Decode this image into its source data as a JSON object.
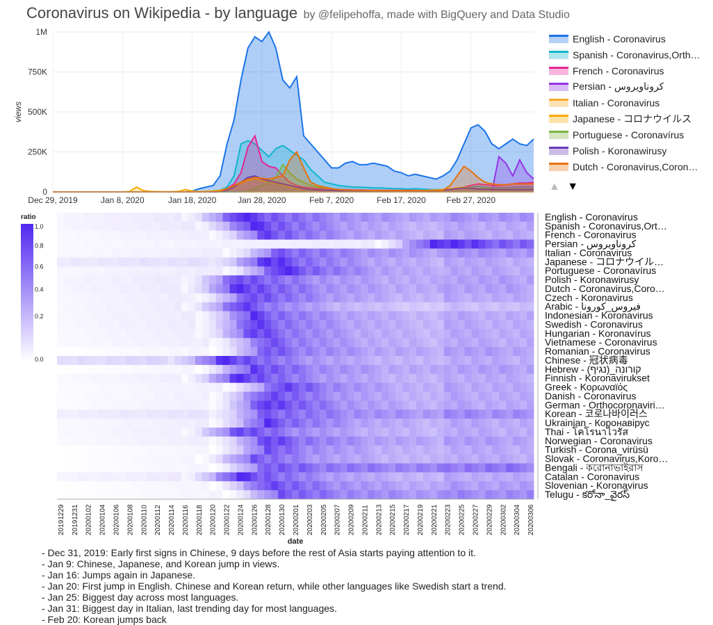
{
  "header": {
    "title": "Coronavirus on Wikipedia - by language",
    "subtitle": "by @felipehoffa, made with BigQuery and Data Studio"
  },
  "legend_nav": {
    "prev": "▲",
    "next": "▼"
  },
  "chart_data": [
    {
      "type": "area",
      "title": "",
      "xlabel": "",
      "ylabel": "views",
      "ylim": [
        0,
        1000000
      ],
      "y_ticks": [
        "0",
        "250K",
        "500K",
        "750K",
        "1M"
      ],
      "y_tick_values": [
        0,
        250000,
        500000,
        750000,
        1000000
      ],
      "x_ticks": [
        "Dec 29, 2019",
        "Jan 8, 2020",
        "Jan 18, 2020",
        "Jan 28, 2020",
        "Feb 7, 2020",
        "Feb 17, 2020",
        "Feb 27, 2020"
      ],
      "x_tick_index": [
        0,
        10,
        20,
        30,
        40,
        50,
        60
      ],
      "grid": true,
      "legend_position": "right",
      "series": [
        {
          "name": "English - Coronavirus",
          "color": "#1a73e8",
          "values": [
            0,
            0,
            0,
            0,
            0,
            0,
            0,
            0,
            0,
            0,
            0,
            0,
            0,
            0,
            0,
            0,
            0,
            0,
            0,
            0,
            5000,
            20000,
            30000,
            40000,
            100000,
            300000,
            450000,
            700000,
            900000,
            970000,
            940000,
            1000000,
            900000,
            700000,
            650000,
            720000,
            350000,
            300000,
            250000,
            200000,
            150000,
            150000,
            180000,
            190000,
            170000,
            170000,
            180000,
            170000,
            160000,
            130000,
            120000,
            100000,
            110000,
            100000,
            90000,
            80000,
            100000,
            130000,
            200000,
            300000,
            400000,
            420000,
            380000,
            300000,
            270000,
            300000,
            330000,
            300000,
            290000,
            330000
          ]
        },
        {
          "name": "Spanish - Coronavirus,Orthocoronavirinae",
          "color": "#12b5cb",
          "values": [
            0,
            0,
            0,
            0,
            0,
            0,
            0,
            0,
            0,
            0,
            0,
            0,
            0,
            0,
            0,
            0,
            0,
            0,
            0,
            0,
            0,
            0,
            2000,
            5000,
            10000,
            30000,
            100000,
            300000,
            320000,
            300000,
            260000,
            220000,
            270000,
            290000,
            260000,
            230000,
            200000,
            140000,
            100000,
            60000,
            50000,
            40000,
            35000,
            30000,
            30000,
            28000,
            25000,
            25000,
            22000,
            20000,
            20000,
            18000,
            20000,
            18000,
            15000,
            15000,
            15000,
            15000,
            20000,
            25000,
            30000,
            35000,
            30000,
            25000,
            25000,
            25000,
            28000,
            30000,
            30000,
            30000
          ]
        },
        {
          "name": "French - Coronavirus",
          "color": "#e52592",
          "values": [
            0,
            0,
            0,
            0,
            0,
            0,
            0,
            0,
            0,
            0,
            0,
            0,
            0,
            0,
            0,
            0,
            0,
            0,
            0,
            0,
            0,
            0,
            0,
            2000,
            5000,
            20000,
            50000,
            120000,
            280000,
            350000,
            190000,
            160000,
            150000,
            100000,
            60000,
            40000,
            30000,
            25000,
            20000,
            18000,
            15000,
            15000,
            14000,
            12000,
            12000,
            11000,
            10000,
            10000,
            10000,
            9000,
            9000,
            9000,
            9000,
            8000,
            9000,
            10000,
            12000,
            15000,
            20000,
            30000,
            40000,
            50000,
            45000,
            40000,
            40000,
            45000,
            50000,
            55000,
            55000,
            60000
          ]
        },
        {
          "name": "Persian - كروناويروس",
          "color": "#9334e6",
          "values": [
            0,
            0,
            0,
            0,
            0,
            0,
            0,
            0,
            0,
            0,
            0,
            0,
            0,
            0,
            0,
            0,
            0,
            0,
            0,
            0,
            0,
            0,
            0,
            0,
            0,
            0,
            0,
            0,
            0,
            0,
            0,
            0,
            0,
            0,
            0,
            0,
            0,
            0,
            0,
            0,
            0,
            0,
            0,
            0,
            0,
            0,
            0,
            0,
            0,
            0,
            0,
            0,
            0,
            0,
            0,
            0,
            0,
            0,
            0,
            0,
            0,
            0,
            0,
            0,
            220000,
            180000,
            100000,
            200000,
            120000,
            80000
          ]
        },
        {
          "name": "Italian - Coronavirus",
          "color": "#f9a825",
          "values": [
            0,
            0,
            0,
            0,
            0,
            0,
            0,
            0,
            0,
            0,
            0,
            0,
            0,
            0,
            0,
            0,
            0,
            0,
            0,
            0,
            0,
            0,
            0,
            0,
            0,
            0,
            0,
            0,
            0,
            0,
            0,
            0,
            0,
            0,
            0,
            0,
            0,
            0,
            0,
            0,
            0,
            0,
            0,
            0,
            0,
            0,
            0,
            0,
            0,
            0,
            0,
            0,
            0,
            0,
            0,
            0,
            0,
            0,
            0,
            0,
            0,
            0,
            0,
            0,
            0,
            0,
            0,
            0,
            0,
            0
          ]
        },
        {
          "name": "Japanese - コロナウイルス",
          "color": "#f9ab00",
          "values": [
            0,
            0,
            0,
            0,
            0,
            0,
            0,
            0,
            0,
            0,
            0,
            2000,
            30000,
            8000,
            3000,
            2000,
            1000,
            1000,
            3000,
            15000,
            5000,
            2000,
            3000,
            5000,
            10000,
            20000,
            30000,
            50000,
            70000,
            80000,
            70000,
            60000,
            55000,
            40000,
            30000,
            20000,
            15000,
            12000,
            10000,
            10000,
            8000,
            8000,
            8000,
            8000,
            8000,
            7000,
            7000,
            7000,
            6000,
            6000,
            6000,
            7000,
            7000,
            8000,
            10000,
            12000,
            15000,
            20000,
            25000,
            30000,
            25000,
            20000,
            20000,
            20000,
            18000,
            18000,
            18000,
            18000,
            18000,
            18000
          ]
        },
        {
          "name": "Portuguese - Coronavírus",
          "color": "#7cb342",
          "values": [
            0,
            0,
            0,
            0,
            0,
            0,
            0,
            0,
            0,
            0,
            0,
            0,
            0,
            0,
            0,
            0,
            0,
            0,
            0,
            0,
            0,
            0,
            0,
            0,
            0,
            0,
            0,
            1000,
            5000,
            20000,
            40000,
            60000,
            90000,
            170000,
            120000,
            80000,
            60000,
            40000,
            30000,
            25000,
            20000,
            15000,
            12000,
            10000,
            10000,
            9000,
            8000,
            8000,
            8000,
            7000,
            7000,
            7000,
            7000,
            7000,
            8000,
            9000,
            10000,
            15000,
            20000,
            25000,
            25000,
            20000,
            20000,
            20000,
            18000,
            18000,
            18000,
            18000,
            18000,
            18000
          ]
        },
        {
          "name": "Polish - Koronawirusy",
          "color": "#673ab7",
          "values": [
            0,
            0,
            0,
            0,
            0,
            0,
            0,
            0,
            0,
            0,
            0,
            0,
            0,
            0,
            0,
            0,
            0,
            0,
            0,
            0,
            0,
            0,
            0,
            0,
            2000,
            10000,
            30000,
            60000,
            90000,
            100000,
            80000,
            70000,
            60000,
            50000,
            40000,
            30000,
            20000,
            15000,
            12000,
            10000,
            9000,
            8000,
            8000,
            7000,
            7000,
            6000,
            6000,
            6000,
            6000,
            5000,
            5000,
            5000,
            5000,
            5000,
            6000,
            8000,
            10000,
            15000,
            20000,
            25000,
            22000,
            18000,
            16000,
            16000,
            15000,
            15000,
            15000,
            15000,
            15000,
            15000
          ]
        },
        {
          "name": "Dutch - Coronavirus,Coronaviridae",
          "color": "#e8710a",
          "values": [
            0,
            0,
            0,
            0,
            0,
            0,
            0,
            0,
            0,
            0,
            0,
            0,
            0,
            0,
            0,
            0,
            0,
            0,
            0,
            0,
            0,
            0,
            0,
            1000,
            5000,
            20000,
            40000,
            60000,
            80000,
            90000,
            85000,
            80000,
            90000,
            100000,
            200000,
            250000,
            150000,
            60000,
            40000,
            30000,
            20000,
            15000,
            12000,
            10000,
            10000,
            9000,
            8000,
            8000,
            8000,
            7000,
            7000,
            7000,
            7000,
            7000,
            8000,
            9000,
            10000,
            40000,
            100000,
            160000,
            130000,
            90000,
            60000,
            50000,
            45000,
            45000,
            50000,
            50000,
            50000,
            50000
          ]
        }
      ]
    },
    {
      "type": "heatmap",
      "title": "",
      "xlabel": "date",
      "ylabel": "",
      "colorbar_label": "ratio",
      "colorbar_ticks": [
        "1.0",
        "0.8",
        "0.6",
        "0.4",
        "0.2",
        "0.0"
      ],
      "colorbar_tick_values": [
        1.0,
        0.8,
        0.6,
        0.4,
        0.2,
        0.0
      ],
      "x": [
        "20191229",
        "20191231",
        "20200102",
        "20200104",
        "20200106",
        "20200108",
        "20200110",
        "20200112",
        "20200114",
        "20200116",
        "20200118",
        "20200120",
        "20200122",
        "20200124",
        "20200126",
        "20200128",
        "20200130",
        "20200201",
        "20200203",
        "20200205",
        "20200207",
        "20200209",
        "20200211",
        "20200213",
        "20200215",
        "20200217",
        "20200219",
        "20200221",
        "20200223",
        "20200225",
        "20200227",
        "20200229",
        "20200302",
        "20200304",
        "20200306"
      ],
      "rows": [
        {
          "label": "English - Coronavirus",
          "start": 0.05,
          "peak_day": 13,
          "peak": 1.0,
          "late": 0.4
        },
        {
          "label": "Spanish - Coronavirus,Ort…",
          "start": 0.05,
          "peak_day": 14,
          "peak": 1.0,
          "late": 0.3
        },
        {
          "label": "French - Coronavirus",
          "start": 0.03,
          "peak_day": 15,
          "peak": 0.9,
          "late": 0.3
        },
        {
          "label": "Persian - كروناويروس",
          "start": 0.03,
          "peak_day": 27,
          "peak": 1.0,
          "late": 0.5
        },
        {
          "label": "Italian - Coronavirus",
          "start": 0.03,
          "peak_day": 16,
          "peak": 0.8,
          "late": 0.4
        },
        {
          "label": "Japanese - コロナウイル…",
          "start": 0.1,
          "peak_day": 15,
          "peak": 1.0,
          "late": 0.3
        },
        {
          "label": "Portuguese - Coronavírus",
          "start": 0.04,
          "peak_day": 16,
          "peak": 1.0,
          "late": 0.3
        },
        {
          "label": "Polish - Koronawirusy",
          "start": 0.05,
          "peak_day": 13,
          "peak": 0.9,
          "late": 0.35
        },
        {
          "label": "Dutch - Coronavirus,Coro…",
          "start": 0.05,
          "peak_day": 13,
          "peak": 1.0,
          "late": 0.35
        },
        {
          "label": "Czech - Koronavirus",
          "start": 0.04,
          "peak_day": 14,
          "peak": 0.9,
          "late": 0.3
        },
        {
          "label": "Arabic - فيروس_كورونا",
          "start": 0.04,
          "peak_day": 13,
          "peak": 0.9,
          "late": 0.2
        },
        {
          "label": "Indonesian - Koronavirus",
          "start": 0.04,
          "peak_day": 14,
          "peak": 0.9,
          "late": 0.3
        },
        {
          "label": "Swedish - Coronavirus",
          "start": 0.04,
          "peak_day": 14,
          "peak": 0.9,
          "late": 0.3
        },
        {
          "label": "Hungarian - Koronavírus",
          "start": 0.03,
          "peak_day": 14,
          "peak": 0.9,
          "late": 0.3
        },
        {
          "label": "Vietnamese - Coronavirus",
          "start": 0.03,
          "peak_day": 15,
          "peak": 0.8,
          "late": 0.3
        },
        {
          "label": "Romanian - Coronavirus",
          "start": 0.0,
          "peak_day": 15,
          "peak": 0.8,
          "late": 0.35
        },
        {
          "label": "Chinese - 冠状病毒",
          "start": 0.15,
          "peak_day": 12,
          "peak": 1.0,
          "late": 0.3
        },
        {
          "label": "Hebrew - (קורונה_(נגיף",
          "start": 0.0,
          "peak_day": 14,
          "peak": 0.9,
          "late": 0.35
        },
        {
          "label": "Finnish - Koronavirukset",
          "start": 0.03,
          "peak_day": 13,
          "peak": 1.0,
          "late": 0.3
        },
        {
          "label": "Greek - Κορωναϊός",
          "start": 0.02,
          "peak_day": 16,
          "peak": 0.9,
          "late": 0.3
        },
        {
          "label": "Danish - Coronavirus",
          "start": 0.02,
          "peak_day": 15,
          "peak": 0.9,
          "late": 0.3
        },
        {
          "label": "German - Orthocoronaviri…",
          "start": 0.02,
          "peak_day": 15,
          "peak": 1.0,
          "late": 0.3
        },
        {
          "label": "Korean - 코로나바이러스",
          "start": 0.08,
          "peak_day": 15,
          "peak": 0.8,
          "late": 0.45
        },
        {
          "label": "Ukrainian - Коронавірус",
          "start": 0.03,
          "peak_day": 15,
          "peak": 0.9,
          "late": 0.3
        },
        {
          "label": "Thai - โคโรนาไวรัส",
          "start": 0.03,
          "peak_day": 13,
          "peak": 0.9,
          "late": 0.3
        },
        {
          "label": "Norwegian - Coronavirus",
          "start": 0.03,
          "peak_day": 15,
          "peak": 0.9,
          "late": 0.35
        },
        {
          "label": "Turkish - Corona_virüsü",
          "start": 0.0,
          "peak_day": 15,
          "peak": 0.8,
          "late": 0.3
        },
        {
          "label": "Slovak - Coronavirus,Koro…",
          "start": 0.0,
          "peak_day": 14,
          "peak": 0.8,
          "late": 0.3
        },
        {
          "label": "Bengali - করোনাভাইরাস",
          "start": 0.0,
          "peak_day": 15,
          "peak": 0.8,
          "late": 0.55
        },
        {
          "label": "Catalan - Coronavirus",
          "start": 0.05,
          "peak_day": 13,
          "peak": 1.0,
          "late": 0.3
        },
        {
          "label": "Slovenian - Koronavirus",
          "start": 0.0,
          "peak_day": 15,
          "peak": 0.9,
          "late": 0.35
        },
        {
          "label": "Telugu - కరోనా_వైరస్",
          "start": 0.0,
          "peak_day": 16,
          "peak": 0.8,
          "late": 0.45
        }
      ]
    }
  ],
  "notes": [
    "- Dec 31, 2019: Early first signs in Chinese, 9 days before the rest of Asia starts paying attention to it.",
    "- Jan 9: Chinese, Japanese, and Korean jump in views.",
    "- Jan 16: Jumps again in Japanese.",
    "- Jan 20: First jump in English. Chinese and Korean return, while other languages like Swedish start a trend.",
    "- Jan 25: Biggest day across most languages.",
    "- Jan 31: Biggest day in Italian, last trending day for most languages.",
    "- Feb 20: Korean jumps back"
  ]
}
